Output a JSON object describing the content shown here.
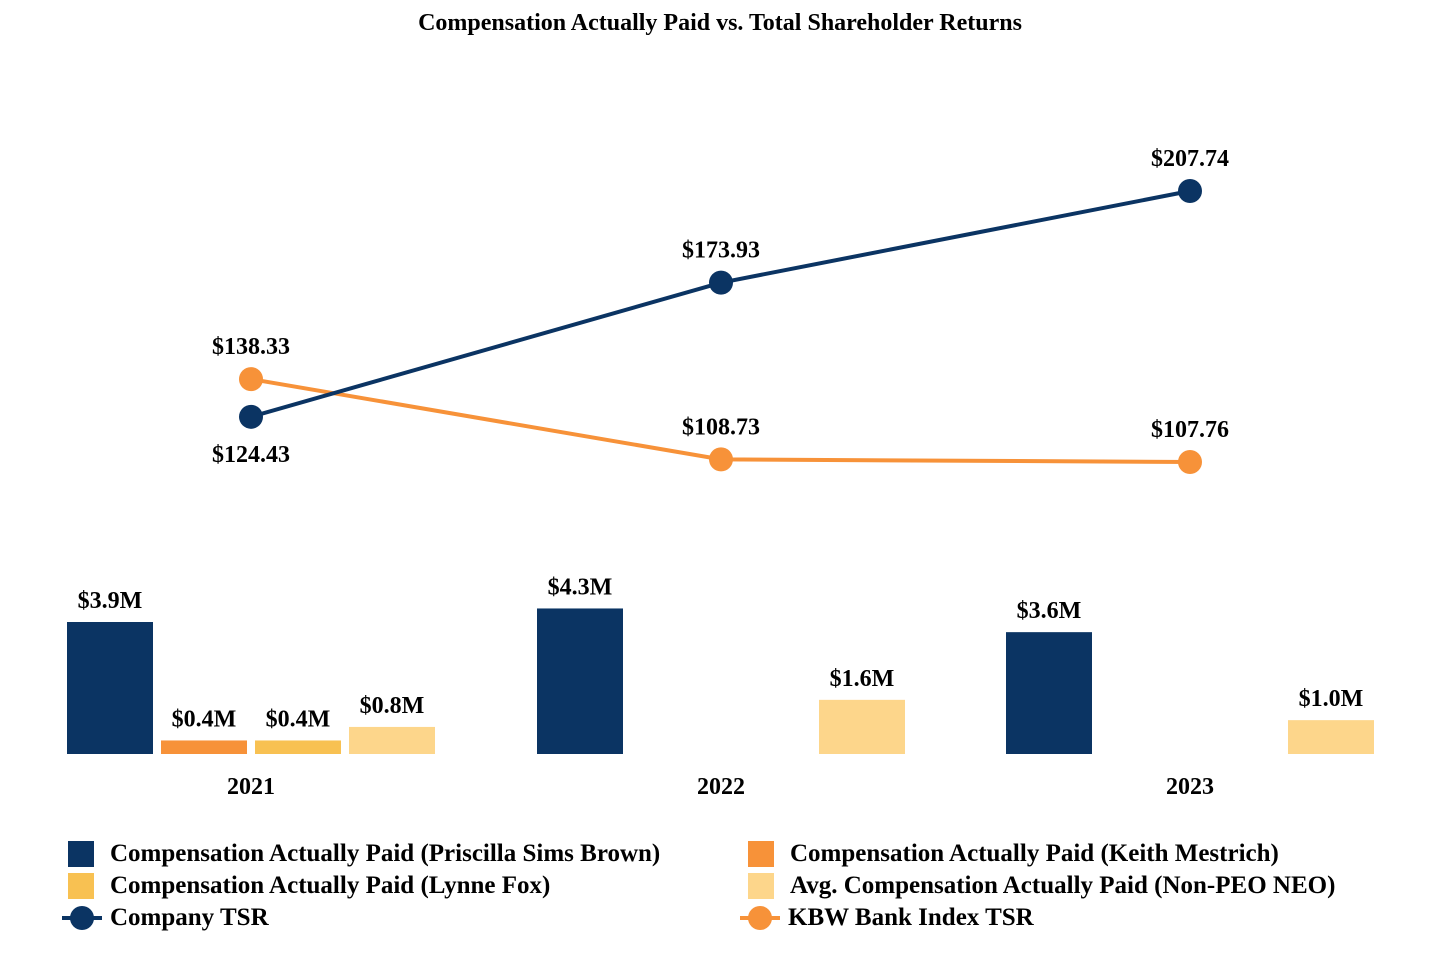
{
  "chart_data": {
    "type": "bar+line",
    "title": "Compensation Actually Paid vs. Total Shareholder Returns",
    "categories": [
      "2021",
      "2022",
      "2023"
    ],
    "bar_series": [
      {
        "name": "Compensation Actually Paid (Priscilla Sims Brown)",
        "color": "#0b3463",
        "values": [
          3.9,
          4.3,
          3.6
        ],
        "labels": [
          "$3.9M",
          "$4.3M",
          "$3.6M"
        ]
      },
      {
        "name": "Compensation Actually Paid (Keith Mestrich)",
        "color": "#f79239",
        "values": [
          0.4,
          null,
          null
        ],
        "labels": [
          "$0.4M",
          null,
          null
        ]
      },
      {
        "name": "Compensation Actually Paid (Lynne Fox)",
        "color": "#f8c152",
        "values": [
          0.4,
          null,
          null
        ],
        "labels": [
          "$0.4M",
          null,
          null
        ]
      },
      {
        "name": "Avg. Compensation Actually Paid (Non-PEO NEO)",
        "color": "#fdd68b",
        "values": [
          0.8,
          1.6,
          1.0
        ],
        "labels": [
          "$0.8M",
          "$1.6M",
          "$1.0M"
        ]
      }
    ],
    "line_series": [
      {
        "name": "Company TSR",
        "color": "#0b3463",
        "values": [
          124.43,
          173.93,
          207.74
        ],
        "labels": [
          "$124.43",
          "$173.93",
          "$207.74"
        ]
      },
      {
        "name": "KBW Bank Index TSR",
        "color": "#f79239",
        "values": [
          138.33,
          108.73,
          107.76
        ],
        "labels": [
          "$138.33",
          "$108.73",
          "$107.76"
        ]
      }
    ],
    "bar_ylim": [
      0,
      4.5
    ],
    "line_ylim": [
      80,
      230
    ],
    "legend": {
      "items": [
        {
          "label": "Compensation Actually Paid (Priscilla Sims Brown)",
          "kind": "bar",
          "color": "#0b3463"
        },
        {
          "label": "Compensation Actually Paid (Keith Mestrich)",
          "kind": "bar",
          "color": "#f79239"
        },
        {
          "label": "Compensation Actually Paid (Lynne Fox)",
          "kind": "bar",
          "color": "#f8c152"
        },
        {
          "label": "Avg. Compensation Actually Paid (Non-PEO NEO)",
          "kind": "bar",
          "color": "#fdd68b"
        },
        {
          "label": "Company TSR",
          "kind": "line",
          "color": "#0b3463"
        },
        {
          "label": "KBW Bank Index TSR",
          "kind": "line",
          "color": "#f79239"
        }
      ],
      "position": "bottom"
    }
  }
}
